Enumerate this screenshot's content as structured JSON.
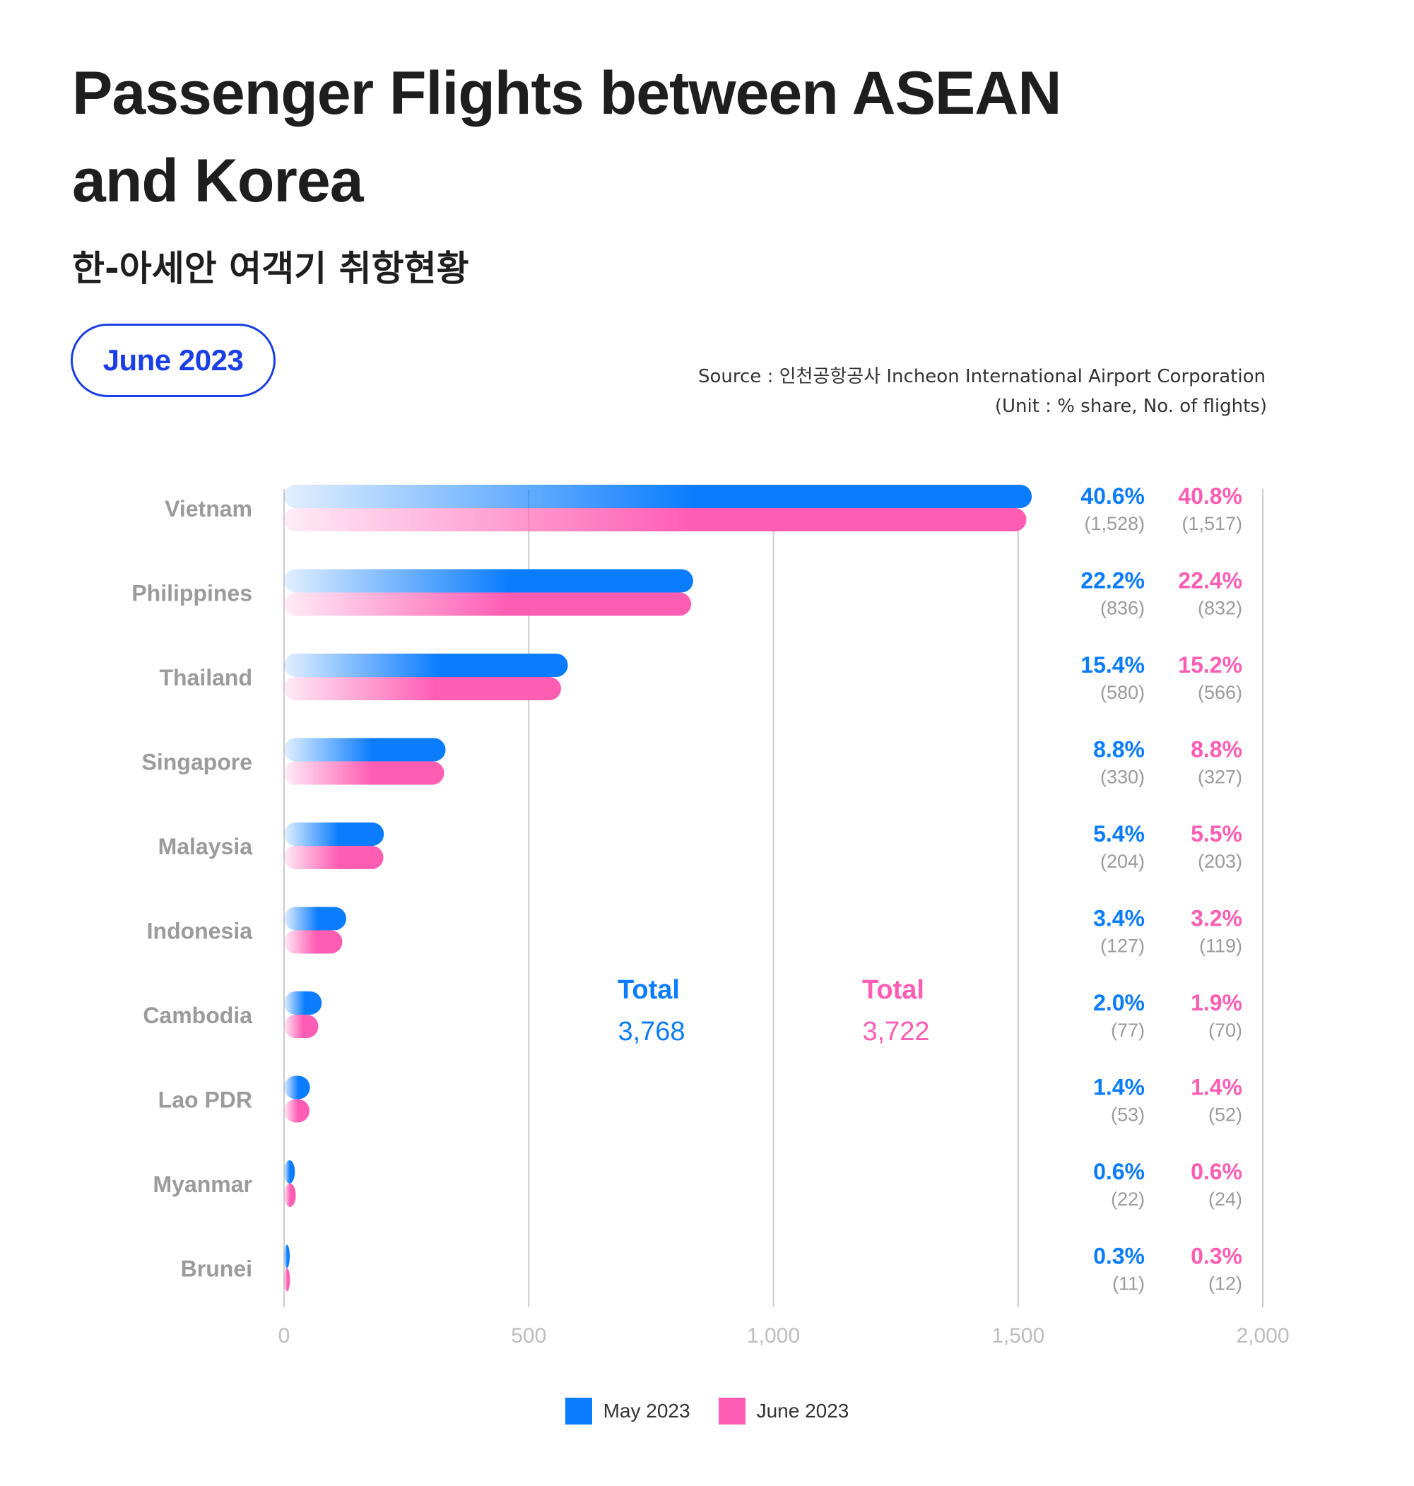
{
  "header": {
    "title_line1": "Passenger Flights between ASEAN",
    "title_line2": "and Korea",
    "subtitle": "한-아세안 여객기 취항현황",
    "badge": "June 2023",
    "source": "Source : 인천공항공사 Incheon International Airport Corporation",
    "unit": "(Unit : % share, No. of flights)"
  },
  "colors": {
    "may": "#0a7cff",
    "june": "#ff5cb3",
    "axis": "#cccccc",
    "label": "#9b9b9b"
  },
  "chart_data": {
    "type": "bar",
    "orientation": "horizontal",
    "categories": [
      "Vietnam",
      "Philippines",
      "Thailand",
      "Singapore",
      "Malaysia",
      "Indonesia",
      "Cambodia",
      "Lao PDR",
      "Myanmar",
      "Brunei"
    ],
    "series": [
      {
        "name": "May 2023",
        "values": [
          1528,
          836,
          580,
          330,
          204,
          127,
          77,
          53,
          22,
          11
        ],
        "shares": [
          "40.6%",
          "22.2%",
          "15.4%",
          "8.8%",
          "5.4%",
          "3.4%",
          "2.0%",
          "1.4%",
          "0.6%",
          "0.3%"
        ],
        "counts": [
          "(1,528)",
          "(836)",
          "(580)",
          "(330)",
          "(204)",
          "(127)",
          "(77)",
          "(53)",
          "(22)",
          "(11)"
        ]
      },
      {
        "name": "June 2023",
        "values": [
          1517,
          832,
          566,
          327,
          203,
          119,
          70,
          52,
          24,
          12
        ],
        "shares": [
          "40.8%",
          "22.4%",
          "15.2%",
          "8.8%",
          "5.5%",
          "3.2%",
          "1.9%",
          "1.4%",
          "0.6%",
          "0.3%"
        ],
        "counts": [
          "(1,517)",
          "(832)",
          "(566)",
          "(327)",
          "(203)",
          "(119)",
          "(70)",
          "(52)",
          "(24)",
          "(12)"
        ]
      }
    ],
    "xlim": [
      0,
      2000
    ],
    "xticks": [
      0,
      500,
      1000,
      1500,
      2000
    ],
    "xtick_labels": [
      "0",
      "500",
      "1,000",
      "1,500",
      "2,000"
    ],
    "grid": true,
    "legend": "bottom-center",
    "annotations": [
      {
        "label": "Total",
        "value": "3,768",
        "series": "May 2023"
      },
      {
        "label": "Total",
        "value": "3,722",
        "series": "June 2023"
      }
    ]
  }
}
